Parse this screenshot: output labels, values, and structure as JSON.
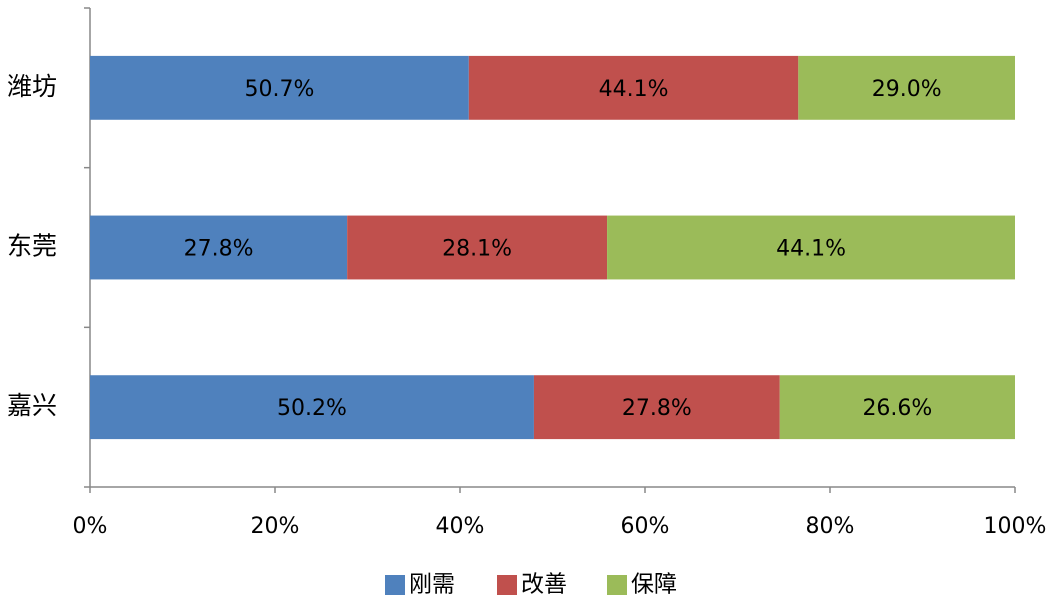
{
  "chart_data": {
    "type": "bar",
    "orientation": "horizontal",
    "stacking": "percent",
    "categories": [
      "潍坊",
      "东莞",
      "嘉兴"
    ],
    "series": [
      {
        "name": "刚需",
        "color": "#4f81bd",
        "values": [
          50.7,
          27.8,
          50.2
        ],
        "value_labels": [
          "50.7%",
          "27.8%",
          "50.2%"
        ]
      },
      {
        "name": "改善",
        "color": "#c0504d",
        "values": [
          44.1,
          28.1,
          27.8
        ],
        "value_labels": [
          "44.1%",
          "28.1%",
          "27.8%"
        ]
      },
      {
        "name": "保障",
        "color": "#9bbb59",
        "values": [
          29.0,
          44.1,
          26.6
        ],
        "value_labels": [
          "29.0%",
          "44.1%",
          "26.6%"
        ]
      }
    ],
    "xlim": [
      0,
      100
    ],
    "xticks": [
      {
        "value": 0,
        "label": "0%"
      },
      {
        "value": 20,
        "label": "20%"
      },
      {
        "value": 40,
        "label": "40%"
      },
      {
        "value": 60,
        "label": "60%"
      },
      {
        "value": 80,
        "label": "80%"
      },
      {
        "value": 100,
        "label": "100%"
      }
    ],
    "grid": false,
    "legend": "bottom"
  }
}
